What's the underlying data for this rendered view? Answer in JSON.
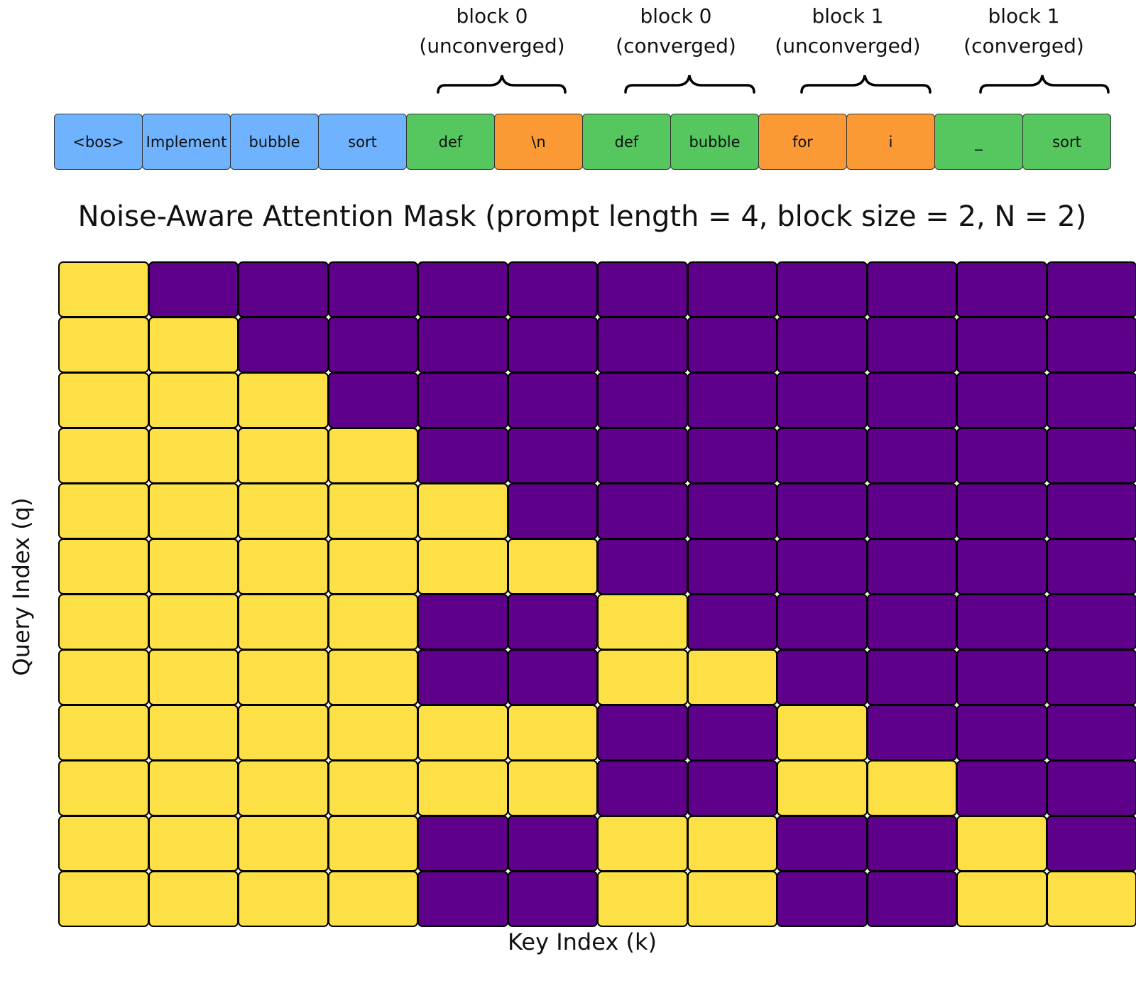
{
  "groups": [
    {
      "line1": "block 0",
      "line2": "(unconverged)"
    },
    {
      "line1": "block 0",
      "line2": "(converged)"
    },
    {
      "line1": "block 1",
      "line2": "(unconverged)"
    },
    {
      "line1": "block 1",
      "line2": "(converged)"
    }
  ],
  "tokens": [
    {
      "text": "<bos>",
      "kind": "prompt"
    },
    {
      "text": "Implement",
      "kind": "prompt"
    },
    {
      "text": "bubble",
      "kind": "prompt"
    },
    {
      "text": "sort",
      "kind": "prompt"
    },
    {
      "text": "def",
      "kind": "converged"
    },
    {
      "text": "\\n",
      "kind": "unconverged"
    },
    {
      "text": "def",
      "kind": "converged"
    },
    {
      "text": "bubble",
      "kind": "converged"
    },
    {
      "text": "for",
      "kind": "unconverged"
    },
    {
      "text": "i",
      "kind": "unconverged"
    },
    {
      "text": "_",
      "kind": "converged"
    },
    {
      "text": "sort",
      "kind": "converged"
    }
  ],
  "colors": {
    "prompt": "#6fb3ff",
    "converged": "#55c75e",
    "unconverged": "#fb9a35",
    "attend": "#fde045",
    "masked": "#5f008a"
  },
  "title": "Noise-Aware Attention Mask (prompt length = 4, block size = 2, N = 2)",
  "xlabel": "Key Index (k)",
  "ylabel": "Query Index (q)",
  "chart_data": {
    "type": "heatmap",
    "title": "Noise-Aware Attention Mask (prompt length = 4, block size = 2, N = 2)",
    "xlabel": "Key Index (k)",
    "ylabel": "Query Index (q)",
    "rows": 12,
    "cols": 12,
    "values": [
      [
        1,
        0,
        0,
        0,
        0,
        0,
        0,
        0,
        0,
        0,
        0,
        0
      ],
      [
        1,
        1,
        0,
        0,
        0,
        0,
        0,
        0,
        0,
        0,
        0,
        0
      ],
      [
        1,
        1,
        1,
        0,
        0,
        0,
        0,
        0,
        0,
        0,
        0,
        0
      ],
      [
        1,
        1,
        1,
        1,
        0,
        0,
        0,
        0,
        0,
        0,
        0,
        0
      ],
      [
        1,
        1,
        1,
        1,
        1,
        0,
        0,
        0,
        0,
        0,
        0,
        0
      ],
      [
        1,
        1,
        1,
        1,
        1,
        1,
        0,
        0,
        0,
        0,
        0,
        0
      ],
      [
        1,
        1,
        1,
        1,
        0,
        0,
        1,
        0,
        0,
        0,
        0,
        0
      ],
      [
        1,
        1,
        1,
        1,
        0,
        0,
        1,
        1,
        0,
        0,
        0,
        0
      ],
      [
        1,
        1,
        1,
        1,
        1,
        1,
        0,
        0,
        1,
        0,
        0,
        0
      ],
      [
        1,
        1,
        1,
        1,
        1,
        1,
        0,
        0,
        1,
        1,
        0,
        0
      ],
      [
        1,
        1,
        1,
        1,
        0,
        0,
        1,
        1,
        0,
        0,
        1,
        0
      ],
      [
        1,
        1,
        1,
        1,
        0,
        0,
        1,
        1,
        0,
        0,
        1,
        1
      ]
    ]
  }
}
